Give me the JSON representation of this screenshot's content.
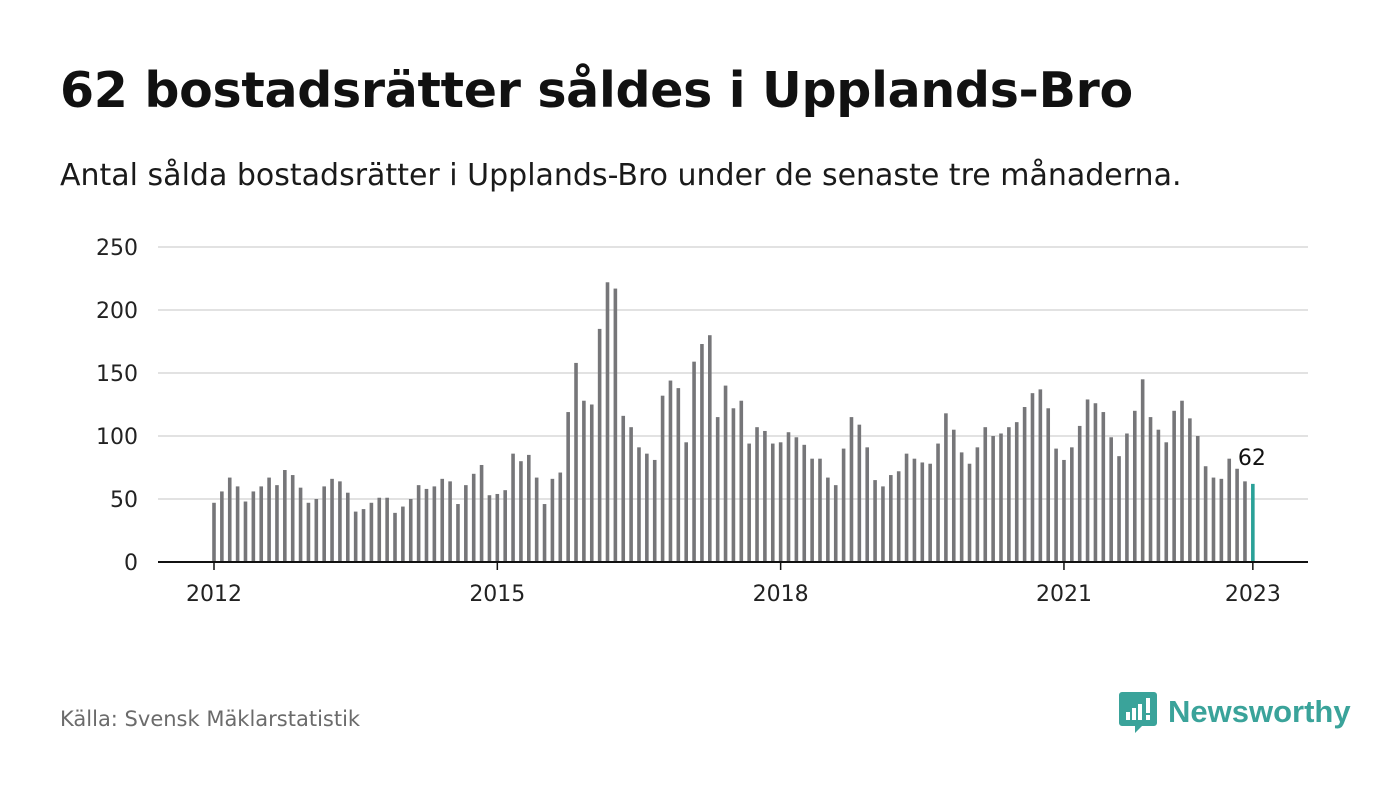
{
  "header": {
    "title": "62 bostadsrätter såldes i Upplands-Bro",
    "subtitle": "Antal sålda bostadsrätter i Upplands-Bro under de senaste tre månaderna."
  },
  "footer": {
    "source": "Källa: Svensk Mäklarstatistik",
    "brand": "Newsworthy",
    "brand_icon": "bar-chart-speech-icon"
  },
  "colors": {
    "bar": "#767679",
    "highlight": "#2aa198",
    "grid": "#d9d9d9",
    "axis": "#111111",
    "brand": "#3aa39a"
  },
  "chart_data": {
    "type": "bar",
    "title": "62 bostadsrätter såldes i Upplands-Bro",
    "subtitle": "Antal sålda bostadsrätter i Upplands-Bro under de senaste tre månaderna.",
    "xlabel": "",
    "ylabel": "",
    "ylim": [
      0,
      250
    ],
    "y_ticks": [
      0,
      50,
      100,
      150,
      200,
      250
    ],
    "x_ticks": [
      "2012",
      "2015",
      "2018",
      "2021",
      "2023"
    ],
    "grid": true,
    "frequency": "monthly (rolling three-month totals)",
    "start": "2012-01",
    "end": "2023-01",
    "highlight_last": true,
    "last_label": "62",
    "values": [
      47,
      56,
      67,
      60,
      48,
      56,
      60,
      67,
      61,
      73,
      69,
      59,
      47,
      50,
      60,
      66,
      64,
      55,
      40,
      42,
      47,
      51,
      51,
      39,
      44,
      50,
      61,
      58,
      60,
      66,
      64,
      46,
      61,
      70,
      77,
      53,
      54,
      57,
      86,
      80,
      85,
      67,
      46,
      66,
      71,
      119,
      158,
      128,
      125,
      185,
      222,
      217,
      116,
      107,
      91,
      86,
      81,
      132,
      144,
      138,
      95,
      159,
      173,
      180,
      115,
      140,
      122,
      128,
      94,
      107,
      104,
      94,
      95,
      103,
      99,
      93,
      82,
      82,
      67,
      61,
      90,
      115,
      109,
      91,
      65,
      60,
      69,
      72,
      86,
      82,
      79,
      78,
      94,
      118,
      105,
      87,
      78,
      91,
      107,
      100,
      102,
      107,
      111,
      123,
      134,
      137,
      122,
      90,
      81,
      91,
      108,
      129,
      126,
      119,
      99,
      84,
      102,
      120,
      145,
      115,
      105,
      95,
      120,
      128,
      114,
      100,
      76,
      67,
      66,
      82,
      74,
      64,
      62
    ]
  }
}
